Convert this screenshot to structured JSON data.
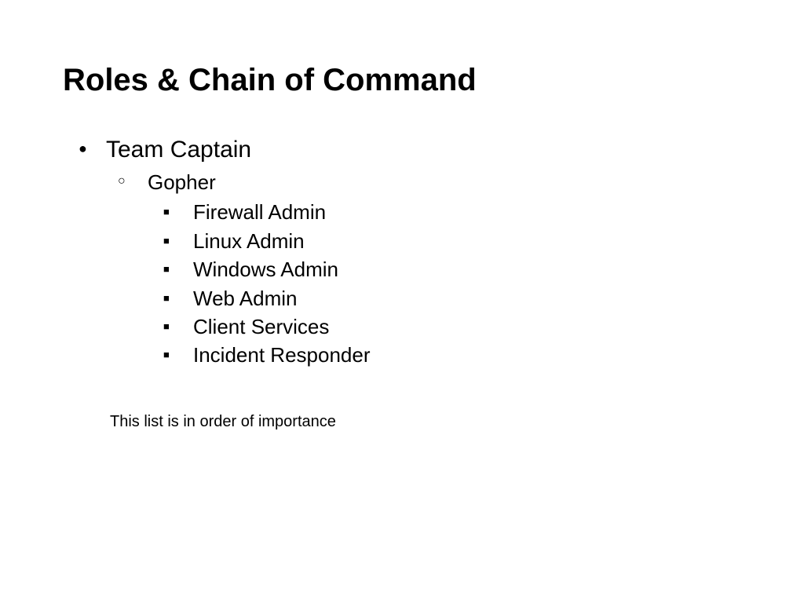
{
  "slide": {
    "title": "Roles & Chain of Command",
    "title_fontsize": 40,
    "title_fontweight": "bold",
    "background_color": "#ffffff",
    "text_color": "#000000",
    "bullets": {
      "level1": [
        {
          "label": "Team Captain",
          "bullet_style": "filled-circle",
          "fontsize": 30
        }
      ],
      "level2": [
        {
          "label": "Gopher",
          "bullet_style": "open-circle",
          "fontsize": 26
        }
      ],
      "level3": [
        {
          "label": "Firewall Admin",
          "bullet_style": "filled-square",
          "fontsize": 26
        },
        {
          "label": "Linux Admin",
          "bullet_style": "filled-square",
          "fontsize": 26
        },
        {
          "label": "Windows Admin",
          "bullet_style": "filled-square",
          "fontsize": 26
        },
        {
          "label": "Web Admin",
          "bullet_style": "filled-square",
          "fontsize": 26
        },
        {
          "label": "Client Services",
          "bullet_style": "filled-square",
          "fontsize": 26
        },
        {
          "label": "Incident Responder",
          "bullet_style": "filled-square",
          "fontsize": 26
        }
      ]
    },
    "footer_note": "This list is in order of importance",
    "footer_fontsize": 20
  }
}
